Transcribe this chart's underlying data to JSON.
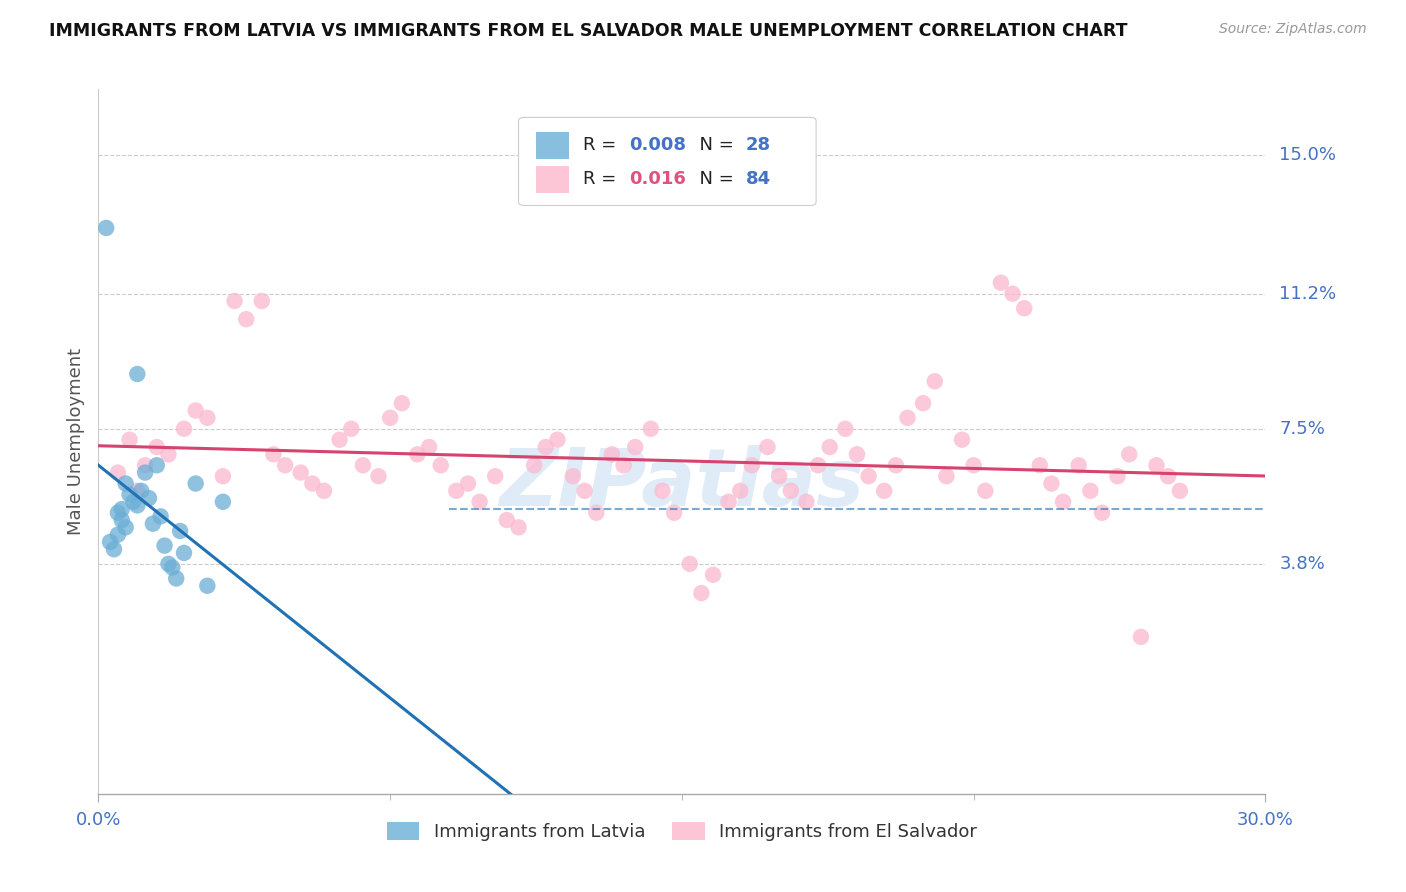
{
  "title": "IMMIGRANTS FROM LATVIA VS IMMIGRANTS FROM EL SALVADOR MALE UNEMPLOYMENT CORRELATION CHART",
  "source": "Source: ZipAtlas.com",
  "ylabel": "Male Unemployment",
  "y_tick_positions": [
    0.038,
    0.075,
    0.112,
    0.15
  ],
  "y_tick_labels": [
    "3.8%",
    "7.5%",
    "11.2%",
    "15.0%"
  ],
  "x_lim": [
    0.0,
    0.3
  ],
  "y_lim": [
    -0.025,
    0.168
  ],
  "latvia_color": "#6baed6",
  "el_salvador_color": "#fcb8ce",
  "latvia_line_color": "#2171b5",
  "el_salvador_line_color": "#d6436e",
  "legend_R_latvia": "0.008",
  "legend_N_latvia": "28",
  "legend_R_elsalvador": "0.016",
  "legend_N_elsalvador": "84",
  "watermark": "ZIPatlas",
  "latvia_x": [
    0.002,
    0.003,
    0.004,
    0.005,
    0.005,
    0.006,
    0.006,
    0.007,
    0.007,
    0.008,
    0.009,
    0.01,
    0.01,
    0.011,
    0.012,
    0.013,
    0.014,
    0.015,
    0.016,
    0.017,
    0.018,
    0.019,
    0.02,
    0.021,
    0.022,
    0.025,
    0.028,
    0.032
  ],
  "latvia_y": [
    0.13,
    0.044,
    0.042,
    0.046,
    0.052,
    0.05,
    0.053,
    0.06,
    0.048,
    0.057,
    0.055,
    0.09,
    0.054,
    0.058,
    0.063,
    0.056,
    0.049,
    0.065,
    0.051,
    0.043,
    0.038,
    0.037,
    0.034,
    0.047,
    0.041,
    0.06,
    0.032,
    0.055
  ],
  "el_salvador_x": [
    0.005,
    0.008,
    0.01,
    0.012,
    0.015,
    0.018,
    0.022,
    0.025,
    0.028,
    0.032,
    0.035,
    0.038,
    0.042,
    0.045,
    0.048,
    0.052,
    0.055,
    0.058,
    0.062,
    0.065,
    0.068,
    0.072,
    0.075,
    0.078,
    0.082,
    0.085,
    0.088,
    0.092,
    0.095,
    0.098,
    0.102,
    0.105,
    0.108,
    0.112,
    0.115,
    0.118,
    0.122,
    0.125,
    0.128,
    0.132,
    0.135,
    0.138,
    0.142,
    0.145,
    0.148,
    0.152,
    0.155,
    0.158,
    0.162,
    0.165,
    0.168,
    0.172,
    0.175,
    0.178,
    0.182,
    0.185,
    0.188,
    0.192,
    0.195,
    0.198,
    0.202,
    0.205,
    0.208,
    0.212,
    0.215,
    0.218,
    0.222,
    0.225,
    0.228,
    0.232,
    0.235,
    0.238,
    0.242,
    0.245,
    0.248,
    0.252,
    0.255,
    0.258,
    0.262,
    0.265,
    0.268,
    0.272,
    0.275,
    0.278
  ],
  "el_salvador_y": [
    0.063,
    0.072,
    0.058,
    0.065,
    0.07,
    0.068,
    0.075,
    0.08,
    0.078,
    0.062,
    0.11,
    0.105,
    0.11,
    0.068,
    0.065,
    0.063,
    0.06,
    0.058,
    0.072,
    0.075,
    0.065,
    0.062,
    0.078,
    0.082,
    0.068,
    0.07,
    0.065,
    0.058,
    0.06,
    0.055,
    0.062,
    0.05,
    0.048,
    0.065,
    0.07,
    0.072,
    0.062,
    0.058,
    0.052,
    0.068,
    0.065,
    0.07,
    0.075,
    0.058,
    0.052,
    0.038,
    0.03,
    0.035,
    0.055,
    0.058,
    0.065,
    0.07,
    0.062,
    0.058,
    0.055,
    0.065,
    0.07,
    0.075,
    0.068,
    0.062,
    0.058,
    0.065,
    0.078,
    0.082,
    0.088,
    0.062,
    0.072,
    0.065,
    0.058,
    0.115,
    0.112,
    0.108,
    0.065,
    0.06,
    0.055,
    0.065,
    0.058,
    0.052,
    0.062,
    0.068,
    0.018,
    0.065,
    0.062,
    0.058
  ]
}
